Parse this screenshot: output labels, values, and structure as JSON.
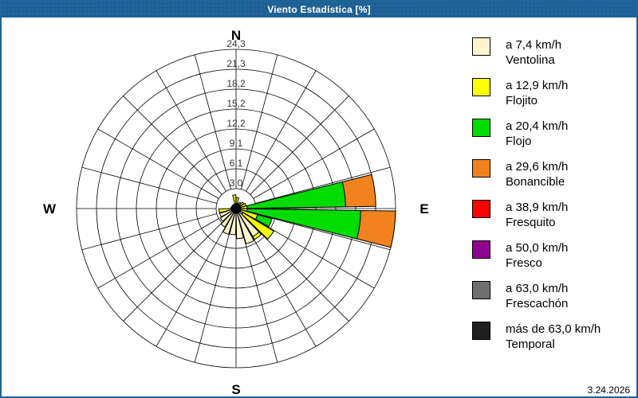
{
  "window": {
    "title": "Viento Estadística [%]",
    "date": "3.24.2026",
    "titlebar_color": "#1f6398",
    "border_color": "#1e6499"
  },
  "compass": {
    "north": "N",
    "east": "E",
    "south": "S",
    "west": "W"
  },
  "legend": [
    {
      "color": "#FDF5CE",
      "speed": "a 7,4 km/h",
      "name": "Ventolina"
    },
    {
      "color": "#FFFF00",
      "speed": "a 12,9 km/h",
      "name": "Flojito"
    },
    {
      "color": "#00DC00",
      "speed": "a 20,4 km/h",
      "name": "Flojo"
    },
    {
      "color": "#F1821E",
      "speed": "a 29,6 km/h",
      "name": "Bonancible"
    },
    {
      "color": "#FE0000",
      "speed": "a 38,9 km/h",
      "name": "Fresquito"
    },
    {
      "color": "#8F018F",
      "speed": "a 50,0 km/h",
      "name": "Fresco"
    },
    {
      "color": "#6F6F6F",
      "speed": "a 63,0 km/h",
      "name": "Frescachón"
    },
    {
      "color": "#1F1F1F",
      "speed": "más de 63,0 km/h",
      "name": "Temporal"
    }
  ],
  "chart_data": {
    "type": "wind-rose stacked polar bar",
    "units": "%",
    "title": "Viento Estadística [%]",
    "rings": 8,
    "ring_max": 24.3,
    "ring_labels": [
      "3,0",
      "6,1",
      "9,1",
      "12,2",
      "15,2",
      "18,2",
      "21,3",
      "24,3"
    ],
    "sectors": 24,
    "sector_width_deg": 15,
    "grid": true,
    "legend_position": "right",
    "series_order": [
      "Ventolina",
      "Flojito",
      "Flojo",
      "Bonancible",
      "Fresquito",
      "Fresco",
      "Frescachón",
      "Temporal"
    ],
    "sectors_data": [
      {
        "center_deg": 7.5,
        "segments": [
          0.5,
          1.2,
          0,
          0,
          0,
          0,
          0,
          0
        ]
      },
      {
        "center_deg": 22.5,
        "segments": [
          0.3,
          0.6,
          0,
          0,
          0,
          0,
          0,
          0
        ]
      },
      {
        "center_deg": 37.5,
        "segments": [
          0.3,
          0.8,
          0,
          0,
          0,
          0,
          0,
          0
        ]
      },
      {
        "center_deg": 52.5,
        "segments": [
          0.4,
          1.0,
          0,
          0,
          0,
          0,
          0,
          0
        ]
      },
      {
        "center_deg": 67.5,
        "segments": [
          0.4,
          1.2,
          0,
          0,
          0,
          0,
          0,
          0
        ]
      },
      {
        "center_deg": 82.5,
        "segments": [
          0.4,
          1.3,
          15.0,
          4.6,
          0,
          0,
          0,
          0
        ]
      },
      {
        "center_deg": 97.5,
        "segments": [
          0.4,
          1.3,
          17.3,
          5.3,
          0,
          0,
          0,
          0
        ]
      },
      {
        "center_deg": 112.5,
        "segments": [
          0.4,
          3.0,
          2.3,
          0,
          0,
          0,
          0,
          0
        ]
      },
      {
        "center_deg": 127.5,
        "segments": [
          1.2,
          5.5,
          0,
          0,
          0,
          0,
          0,
          0
        ]
      },
      {
        "center_deg": 142.5,
        "segments": [
          5.0,
          0.5,
          0,
          0,
          0,
          0,
          0,
          0
        ]
      },
      {
        "center_deg": 157.5,
        "segments": [
          5.6,
          0,
          0,
          0,
          0,
          0,
          0,
          0
        ]
      },
      {
        "center_deg": 172.5,
        "segments": [
          4.6,
          0,
          0,
          0,
          0,
          0,
          0,
          0
        ]
      },
      {
        "center_deg": 187.5,
        "segments": [
          4.0,
          0,
          0,
          0,
          0,
          0,
          0,
          0
        ]
      },
      {
        "center_deg": 202.5,
        "segments": [
          4.1,
          0,
          0,
          0,
          0,
          0,
          0,
          0
        ]
      },
      {
        "center_deg": 217.5,
        "segments": [
          3.3,
          0,
          0,
          0,
          0,
          0,
          0,
          0
        ]
      },
      {
        "center_deg": 232.5,
        "segments": [
          2.8,
          0,
          0,
          0,
          0,
          0,
          0,
          0
        ]
      },
      {
        "center_deg": 247.5,
        "segments": [
          2.6,
          0,
          0,
          0,
          0,
          0,
          0,
          0
        ]
      },
      {
        "center_deg": 262.5,
        "segments": [
          0.5,
          2.1,
          0,
          0,
          0,
          0,
          0,
          0
        ]
      },
      {
        "center_deg": 277.5,
        "segments": [
          0.4,
          0.4,
          0,
          0,
          0,
          0,
          0,
          0
        ]
      },
      {
        "center_deg": 292.5,
        "segments": [
          0.3,
          0,
          0,
          0,
          0,
          0,
          0,
          0
        ]
      },
      {
        "center_deg": 307.5,
        "segments": [
          0.2,
          0,
          0,
          0,
          0,
          0,
          0,
          0
        ]
      },
      {
        "center_deg": 322.5,
        "segments": [
          0.2,
          0,
          0,
          0,
          0,
          0,
          0,
          0
        ]
      },
      {
        "center_deg": 337.5,
        "segments": [
          0.3,
          0,
          0,
          0,
          0,
          0,
          0,
          0
        ]
      },
      {
        "center_deg": 352.5,
        "segments": [
          0.5,
          1.6,
          0,
          0,
          0,
          0,
          0,
          0
        ]
      }
    ]
  }
}
